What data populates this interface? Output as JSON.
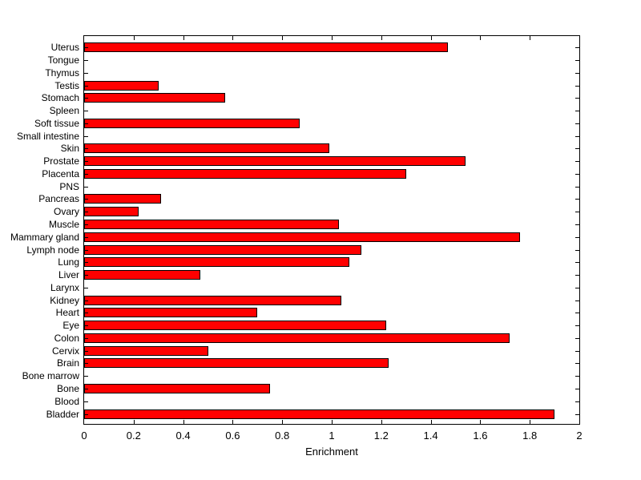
{
  "chart_data": {
    "type": "bar",
    "orientation": "horizontal",
    "title": "",
    "xlabel": "Enrichment",
    "ylabel": "",
    "xlim": [
      0,
      2
    ],
    "grid": false,
    "legend": null,
    "bar_color": "#FF0000",
    "bar_edge_color": "#000000",
    "axis_color": "#000000",
    "background_color": "#FFFFFF",
    "xticks": [
      0,
      0.2,
      0.4,
      0.6,
      0.8,
      1,
      1.2,
      1.4,
      1.6,
      1.8,
      2
    ],
    "xtick_labels": [
      "0",
      "0.2",
      "0.4",
      "0.6",
      "0.8",
      "1",
      "1.2",
      "1.4",
      "1.6",
      "1.8",
      "2"
    ],
    "categories": [
      "Uterus",
      "Tongue",
      "Thymus",
      "Testis",
      "Stomach",
      "Spleen",
      "Soft tissue",
      "Small intestine",
      "Skin",
      "Prostate",
      "Placenta",
      "PNS",
      "Pancreas",
      "Ovary",
      "Muscle",
      "Mammary gland",
      "Lymph node",
      "Lung",
      "Liver",
      "Larynx",
      "Kidney",
      "Heart",
      "Eye",
      "Colon",
      "Cervix",
      "Brain",
      "Bone marrow",
      "Bone",
      "Blood",
      "Bladder"
    ],
    "values": [
      1.47,
      0,
      0,
      0.3,
      0.57,
      0,
      0.87,
      0,
      0.99,
      1.54,
      1.3,
      0,
      0.31,
      0.22,
      1.03,
      1.76,
      1.12,
      1.07,
      0.47,
      0,
      1.04,
      0.7,
      1.22,
      1.72,
      0.5,
      1.23,
      0,
      0.75,
      0,
      1.9
    ]
  }
}
